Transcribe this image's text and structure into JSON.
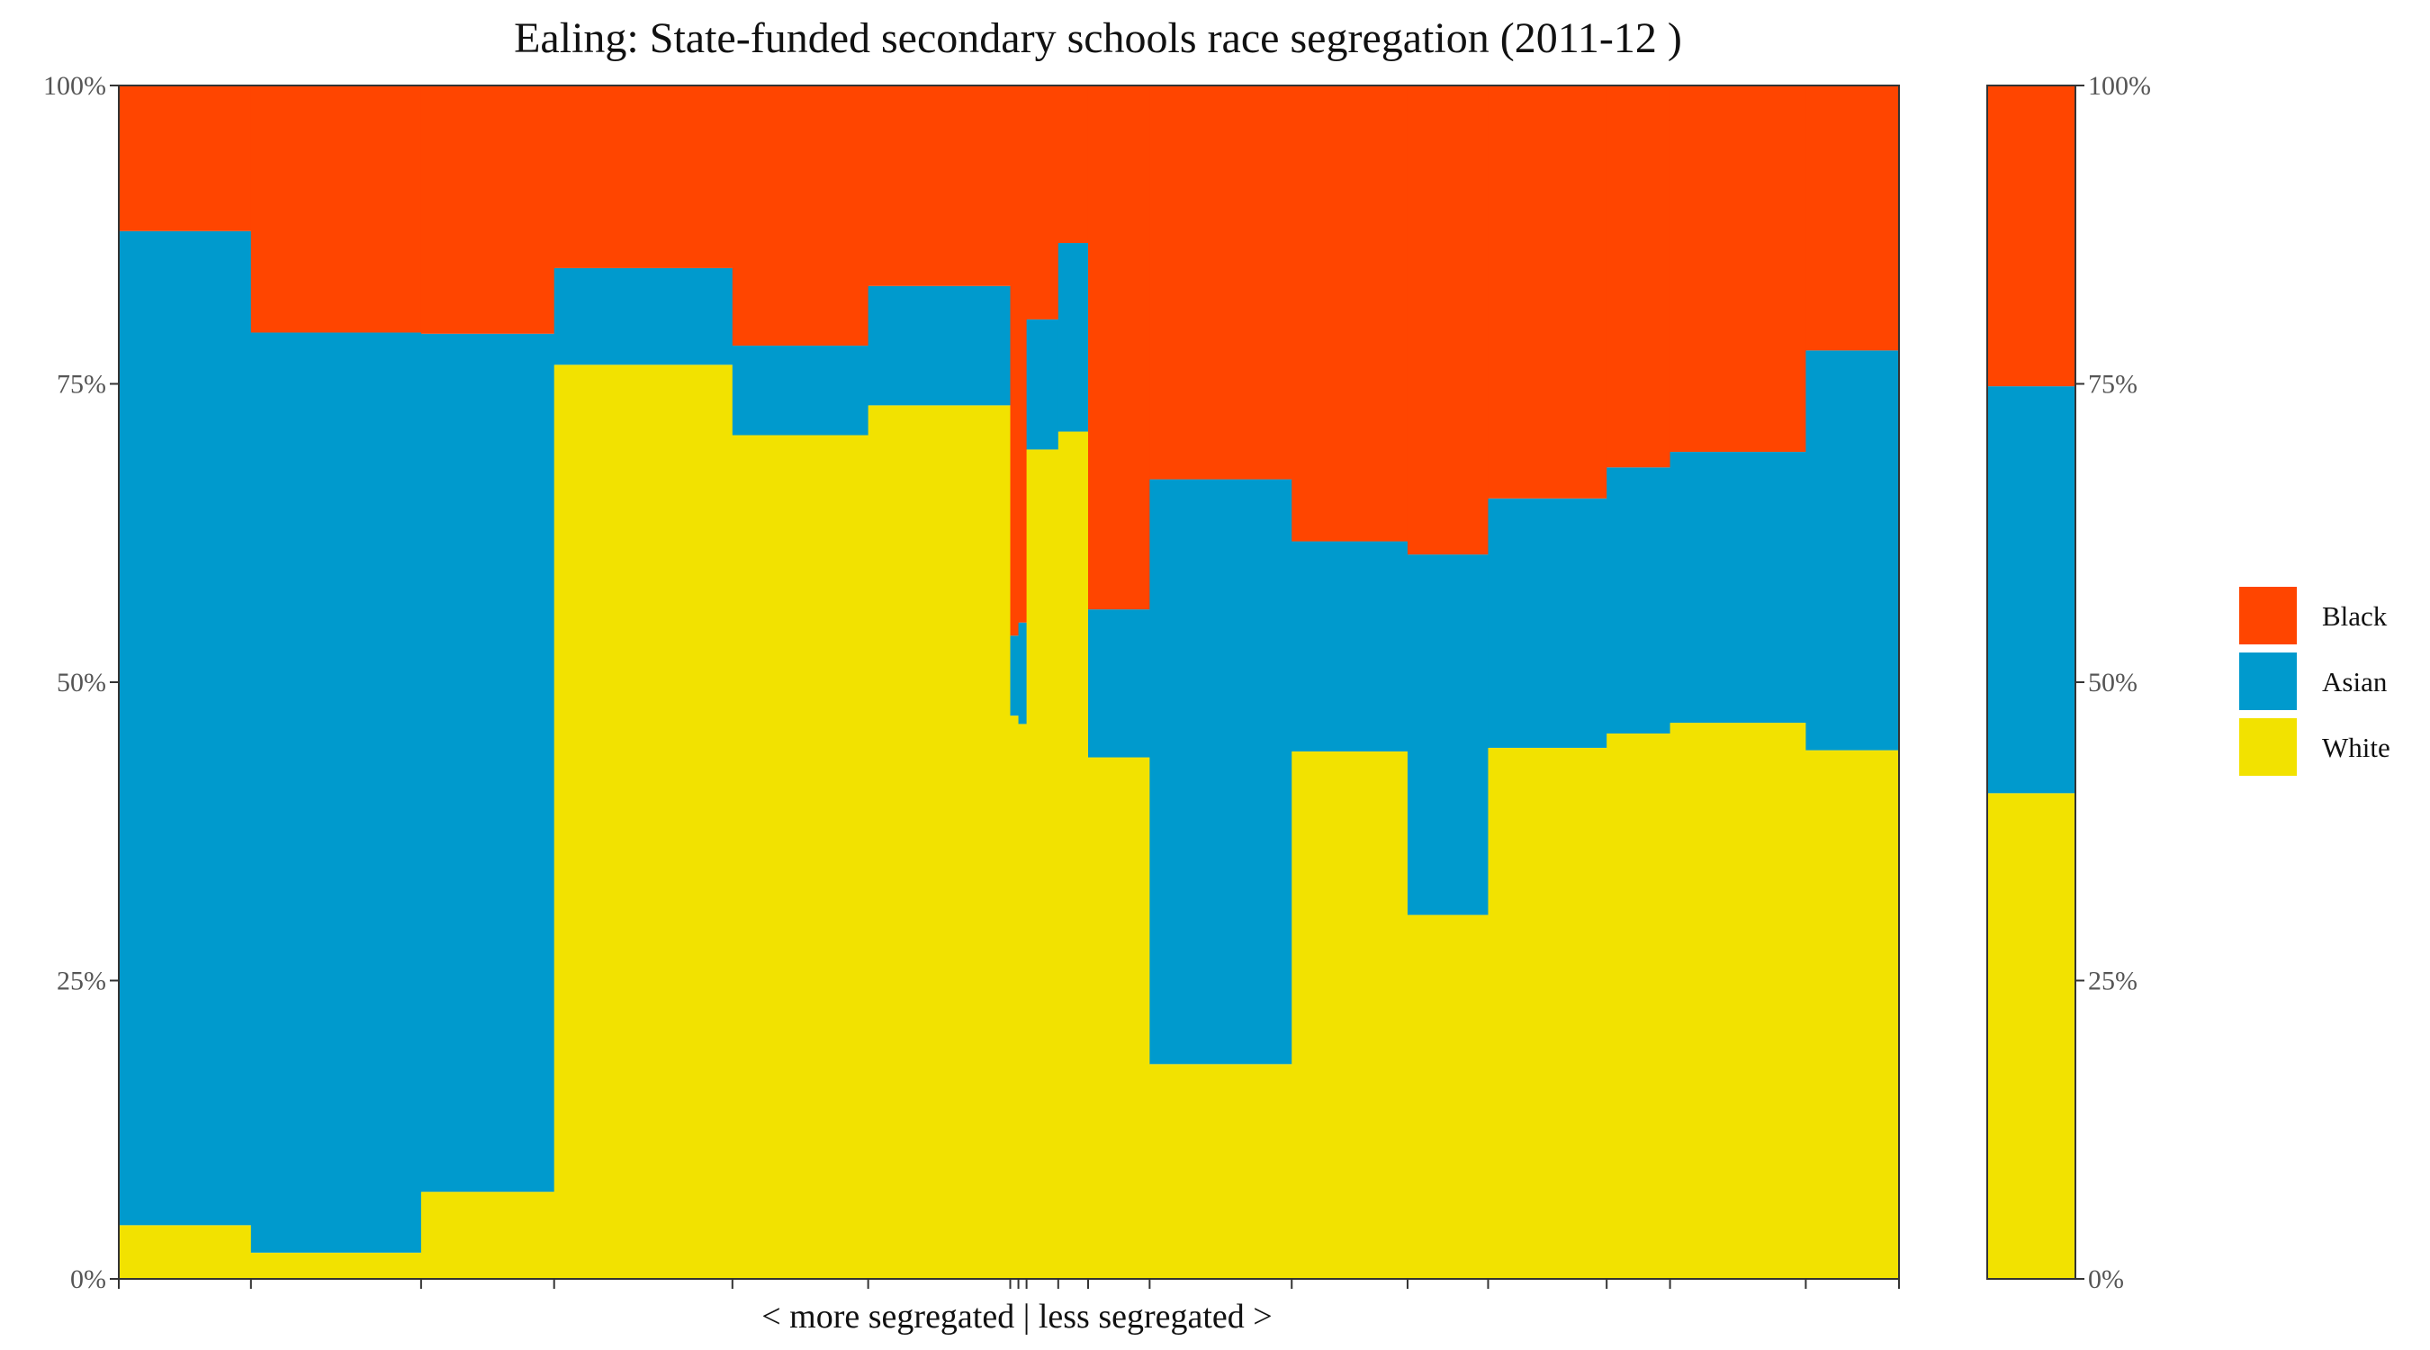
{
  "chart_data": {
    "type": "bar",
    "title": "Ealing: State-funded secondary schools race segregation (2011-12 )",
    "xlabel": "< more segregated | less segregated >",
    "ylabel": "",
    "ylim": [
      0,
      1
    ],
    "y_ticks": [
      "0%",
      "25%",
      "50%",
      "75%",
      "100%"
    ],
    "stack_order": [
      "White",
      "Asian",
      "Black"
    ],
    "legend": [
      {
        "name": "Black",
        "color": "#FF4500"
      },
      {
        "name": "Asian",
        "color": "#009ACD"
      },
      {
        "name": "White",
        "color": "#F2E200"
      }
    ],
    "schools": [
      {
        "width": 146,
        "white": 0.045,
        "asian": 0.833,
        "black": 0.122
      },
      {
        "width": 188,
        "white": 0.022,
        "asian": 0.771,
        "black": 0.207
      },
      {
        "width": 147,
        "white": 0.073,
        "asian": 0.719,
        "black": 0.208
      },
      {
        "width": 197,
        "white": 0.766,
        "asian": 0.081,
        "black": 0.153
      },
      {
        "width": 150,
        "white": 0.707,
        "asian": 0.075,
        "black": 0.218
      },
      {
        "width": 157,
        "white": 0.732,
        "asian": 0.1,
        "black": 0.168
      },
      {
        "width": 9,
        "white": 0.472,
        "asian": 0.067,
        "black": 0.461
      },
      {
        "width": 9,
        "white": 0.465,
        "asian": 0.085,
        "black": 0.45
      },
      {
        "width": 35,
        "white": 0.695,
        "asian": 0.109,
        "black": 0.196
      },
      {
        "width": 33,
        "white": 0.71,
        "asian": 0.158,
        "black": 0.132
      },
      {
        "width": 68,
        "white": 0.437,
        "asian": 0.124,
        "black": 0.439
      },
      {
        "width": 157,
        "white": 0.18,
        "asian": 0.49,
        "black": 0.33
      },
      {
        "width": 128,
        "white": 0.442,
        "asian": 0.176,
        "black": 0.382
      },
      {
        "width": 89,
        "white": 0.305,
        "asian": 0.302,
        "black": 0.393
      },
      {
        "width": 131,
        "white": 0.445,
        "asian": 0.209,
        "black": 0.346
      },
      {
        "width": 70,
        "white": 0.457,
        "asian": 0.223,
        "black": 0.32
      },
      {
        "width": 150,
        "white": 0.466,
        "asian": 0.227,
        "black": 0.307
      },
      {
        "width": 103,
        "white": 0.443,
        "asian": 0.335,
        "black": 0.222
      }
    ],
    "overall": {
      "white": 0.407,
      "asian": 0.341,
      "black": 0.252
    }
  }
}
